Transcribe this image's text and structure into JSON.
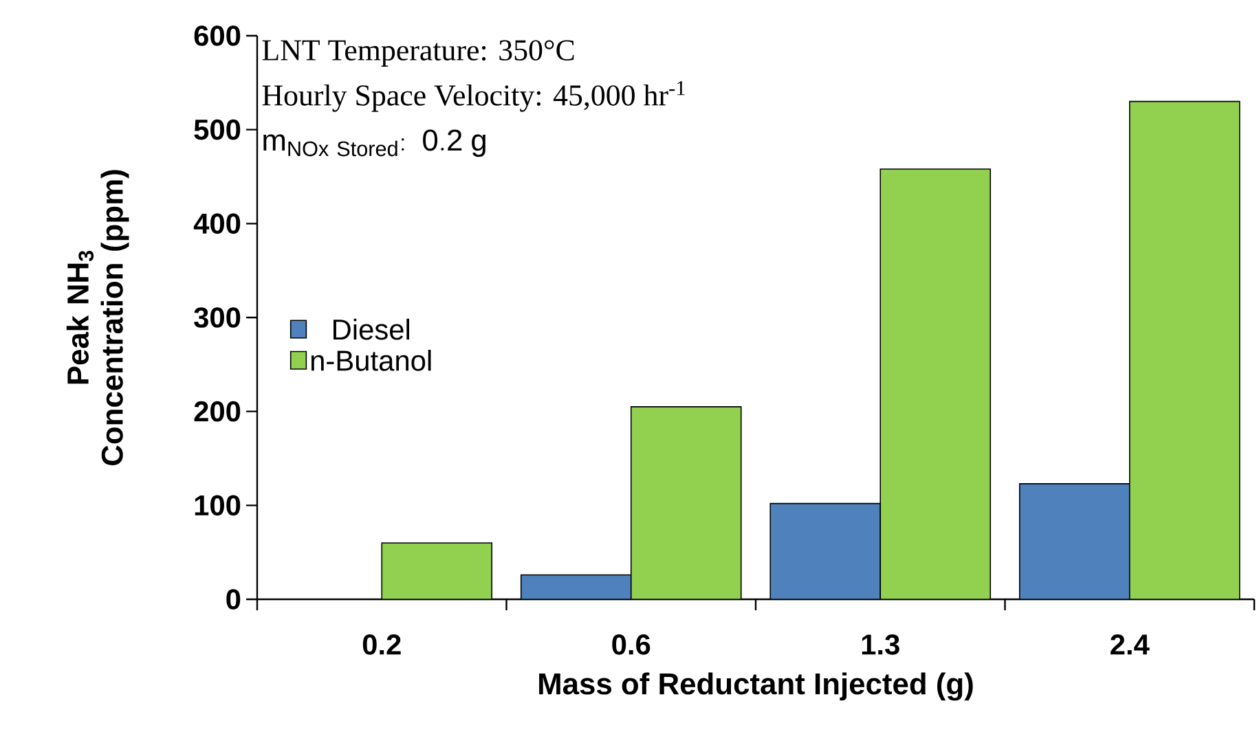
{
  "chart_data": {
    "type": "bar",
    "xlabel": "Mass of Reductant Injected (g)",
    "ylabel": "Peak NH$_{3}$ Concentration (ppm)",
    "categories": [
      "0.2",
      "0.6",
      "1.3",
      "2.4"
    ],
    "series": [
      {
        "name": "Diesel",
        "color": "#4f81bd",
        "values": [
          0,
          26,
          102,
          123
        ]
      },
      {
        "name": "n-Butanol",
        "color": "#92d050",
        "values": [
          60,
          205,
          458,
          530
        ]
      }
    ],
    "ylim": [
      0,
      600
    ],
    "yticks": [
      0,
      100,
      200,
      300,
      400,
      500,
      600
    ],
    "grid": false,
    "legend": "left",
    "annotations": [
      "LNT Temperature: 350°C",
      "Hourly Space Velocity: 45,000 hr$^{-1}$",
      "\\mathrm{m}_{\\mathrm{NOx\\ Stored}}\\mathrm{:\\ 0.2\\ g}"
    ]
  }
}
